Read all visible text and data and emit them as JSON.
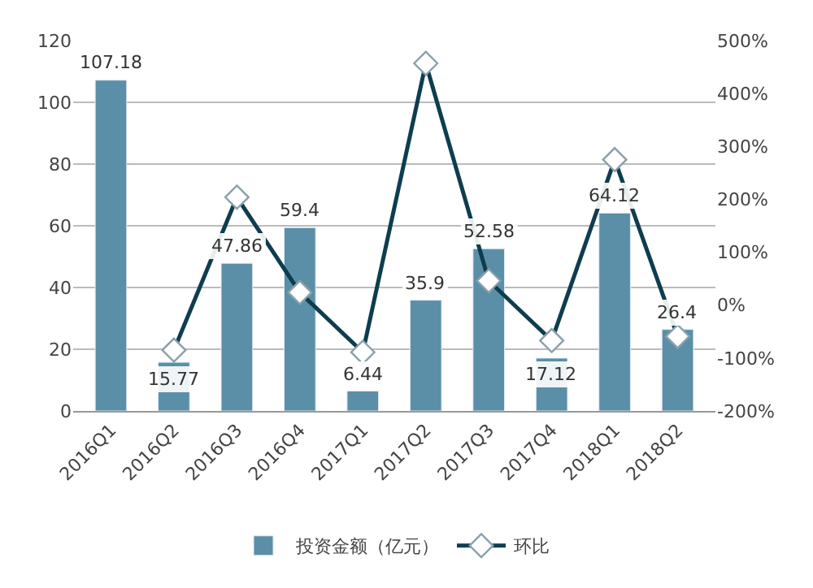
{
  "chart_data": {
    "type": "bar",
    "categories": [
      "2016Q1",
      "2016Q2",
      "2016Q3",
      "2016Q4",
      "2017Q1",
      "2017Q2",
      "2017Q3",
      "2017Q4",
      "2018Q1",
      "2018Q2"
    ],
    "series": [
      {
        "name": "投资金额（亿元）",
        "color": "#5b8fa8",
        "values": [
          107.18,
          15.77,
          47.86,
          59.4,
          6.44,
          35.9,
          52.58,
          17.12,
          64.12,
          26.4
        ],
        "data_labels": true
      },
      {
        "name": "环比",
        "type": "line",
        "axis": "y2",
        "color": "#0e3d4f",
        "marker": "diamond",
        "line_style": "solid",
        "values": [
          null,
          -85,
          204,
          24,
          -89,
          457,
          46,
          -67,
          275,
          -59
        ]
      }
    ],
    "ylim": [
      0,
      120
    ],
    "yticks": [
      0,
      20,
      40,
      60,
      80,
      100,
      120
    ],
    "y2lim": [
      -200,
      500
    ],
    "y2ticks": [
      {
        "value": -200,
        "label": "-200%"
      },
      {
        "value": -100,
        "label": "-100%"
      },
      {
        "value": 0,
        "label": "0%"
      },
      {
        "value": 100,
        "label": "100%"
      },
      {
        "value": 200,
        "label": "200%"
      },
      {
        "value": 300,
        "label": "300%"
      },
      {
        "value": 400,
        "label": "400%"
      },
      {
        "value": 500,
        "label": "500%"
      }
    ],
    "grid": "y",
    "legend": "bottom"
  }
}
